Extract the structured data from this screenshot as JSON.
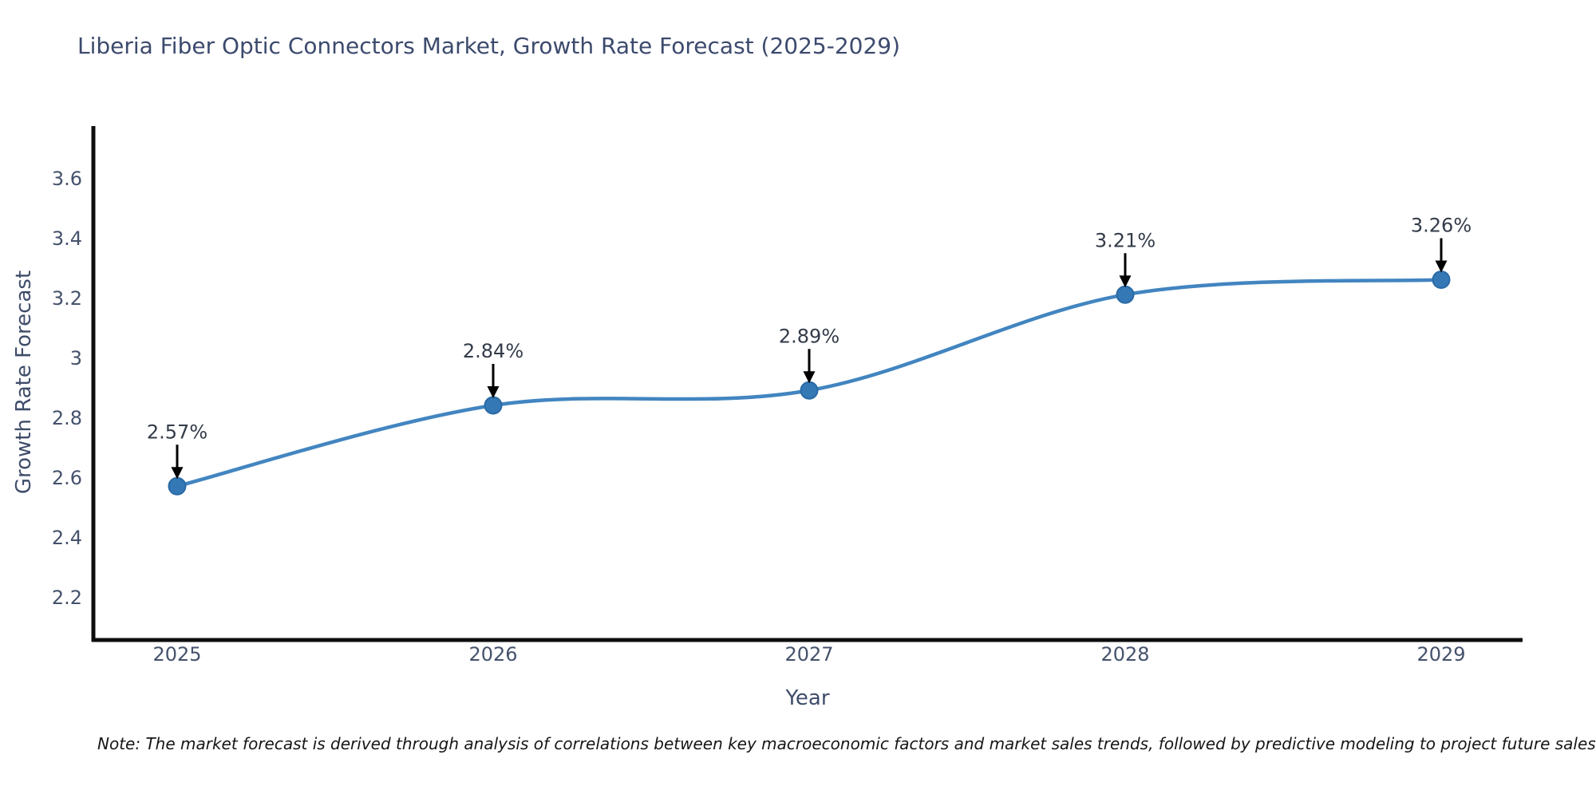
{
  "note": "Note: The market forecast is derived through analysis of correlations between key macroeconomic factors and market sales trends, followed by predictive modeling to project future sales.",
  "chart_data": {
    "type": "line",
    "line_shape": "spline",
    "title": "Liberia Fiber Optic Connectors Market, Growth Rate Forecast (2025-2029)",
    "xlabel": "Year",
    "ylabel": "Growth Rate Forecast",
    "x": [
      2025,
      2026,
      2027,
      2028,
      2029
    ],
    "values": [
      2.57,
      2.84,
      2.89,
      3.21,
      3.26
    ],
    "point_labels": [
      "2.57%",
      "2.84%",
      "2.89%",
      "3.21%",
      "3.26%"
    ],
    "y_ticks": [
      2.2,
      2.4,
      2.6,
      2.8,
      3,
      3.2,
      3.4,
      3.6
    ],
    "ylim": [
      1.98,
      3.77
    ],
    "grid": false,
    "legend": "none",
    "annotation_style": "down-arrow-to-point",
    "colors": {
      "line": "#4285c0",
      "marker": "#3478b6",
      "marker_edge": "#2a6aa5",
      "axis": "#0d0d0d",
      "title": "#3c4a6d",
      "tick": "#45526c",
      "annotation_text": "#333b49",
      "arrow": "#000000",
      "background": "#ffffff"
    }
  }
}
